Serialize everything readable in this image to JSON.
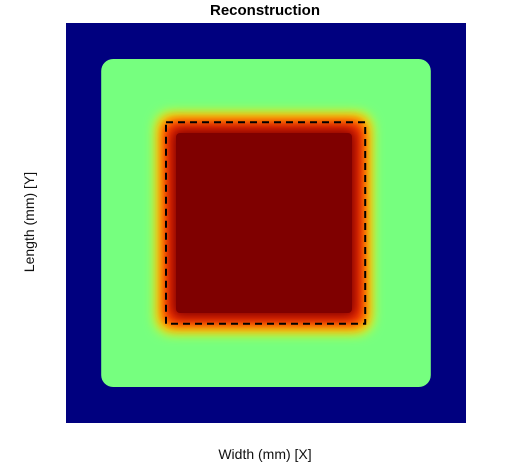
{
  "chart_data": {
    "type": "heatmap",
    "title": "Reconstruction",
    "xlabel": "Width (mm) [X]",
    "ylabel": "Length (mm) [Y]",
    "colormap": "jet",
    "value_range": [
      0,
      1
    ],
    "ticks_visible": false,
    "grid": false,
    "legend": "none",
    "regions": [
      {
        "name": "background",
        "value": 0.0,
        "color": "#00007f",
        "x_range": [
          0,
          1
        ],
        "y_range": [
          0,
          1
        ]
      },
      {
        "name": "outer-square",
        "value": 0.4,
        "color": "#76ff7f",
        "x_range": [
          0.088,
          0.912
        ],
        "y_range": [
          0.09,
          0.91
        ],
        "edge": "sharp-rounded"
      },
      {
        "name": "inner-square",
        "value": 1.0,
        "color": "#7f0000",
        "x_range": [
          0.245,
          0.745
        ],
        "y_range": [
          0.245,
          0.755
        ],
        "edge": "blurred"
      }
    ],
    "annotations": [
      {
        "name": "true-boundary",
        "style": "dashed",
        "color": "#000000",
        "x_range": [
          0.25,
          0.748
        ],
        "y_range": [
          0.248,
          0.752
        ]
      }
    ]
  }
}
